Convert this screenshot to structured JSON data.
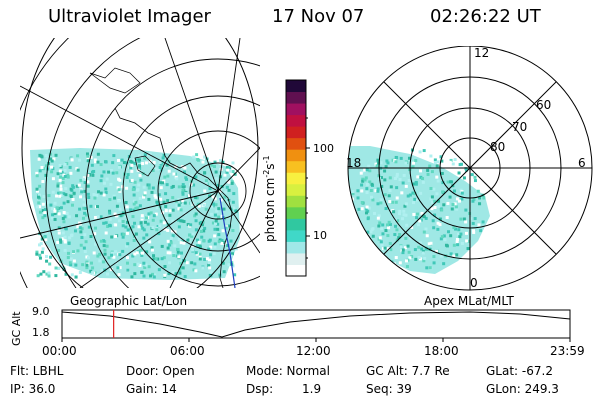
{
  "header": {
    "title": "Ultraviolet Imager",
    "date": "17 Nov 07",
    "time": "02:26:22 UT"
  },
  "left_map": {
    "label": "Geographic Lat/Lon"
  },
  "right_map": {
    "label": "Apex MLat/MLT",
    "lat_labels": [
      "80",
      "70",
      "60"
    ],
    "mlt_labels": [
      "12",
      "18",
      "6",
      "0"
    ]
  },
  "colorbar": {
    "unit_label": "photon cm",
    "unit_sup1": "-2",
    "unit_s": "s",
    "unit_sup2": "-1",
    "ticks": [
      "100",
      "10"
    ],
    "colors": [
      "#ffffff",
      "#e0f0f0",
      "#a0e8e8",
      "#40d8c8",
      "#30c8a0",
      "#60d050",
      "#a0e040",
      "#d8f040",
      "#f8f040",
      "#f8c020",
      "#f09010",
      "#e05010",
      "#d02020",
      "#c01040",
      "#a01060",
      "#601050",
      "#200838"
    ]
  },
  "altitude_plot": {
    "ylabel": "GC Alt",
    "y_ticks": [
      "9.0",
      "1.8"
    ],
    "x_ticks": [
      "00:00",
      "06:00",
      "12:00",
      "18:00",
      "23:59"
    ],
    "current_time_hours": 2.44
  },
  "info": {
    "flt": "Flt: LBHL",
    "ip": "IP: 36.0",
    "door": "Door: Open",
    "gain": "Gain: 14",
    "mode": "Mode: Normal",
    "dsp_label": "Dsp:",
    "dsp_value": "1.9",
    "gc_alt": "GC Alt: 7.7 Re",
    "seq": "Seq: 39",
    "glat": "GLat: -67.2",
    "glon": "GLon: 249.3"
  }
}
